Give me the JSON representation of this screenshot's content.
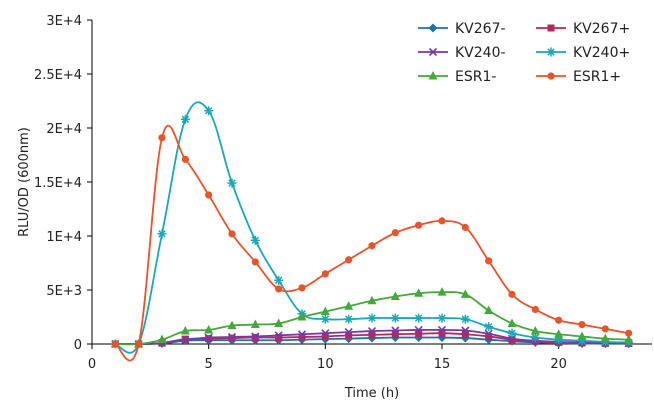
{
  "chart_data": {
    "type": "line",
    "xlabel": "Time (h)",
    "ylabel": "RLU/OD (600nm)",
    "xlim": [
      0,
      24
    ],
    "ylim": [
      0,
      30000
    ],
    "xticks": [
      0,
      5,
      10,
      15,
      20
    ],
    "xtick_labels": [
      "0",
      "5",
      "10",
      "15",
      "20"
    ],
    "yticks": [
      0,
      5000,
      10000,
      15000,
      20000,
      25000,
      30000
    ],
    "ytick_labels": [
      "0",
      "5E+3",
      "1E+4",
      "1.5E+4",
      "2E+4",
      "2.5E+4",
      "3E+4"
    ],
    "legend_position": "top-right",
    "x": [
      1,
      2,
      3,
      4,
      5,
      6,
      7,
      8,
      9,
      10,
      11,
      12,
      13,
      14,
      15,
      16,
      17,
      18,
      19,
      20,
      21,
      22,
      23
    ],
    "series": [
      {
        "name": "KV267-",
        "color": "#1f6fb5",
        "marker": "diamond",
        "values": [
          0,
          0,
          50,
          300,
          350,
          350,
          350,
          350,
          400,
          450,
          500,
          550,
          600,
          600,
          600,
          550,
          400,
          250,
          150,
          80,
          50,
          30,
          20
        ]
      },
      {
        "name": "KV267+",
        "color": "#b02a5b",
        "marker": "square",
        "values": [
          0,
          0,
          100,
          450,
          500,
          550,
          600,
          600,
          650,
          700,
          800,
          850,
          900,
          950,
          1000,
          900,
          700,
          400,
          250,
          150,
          100,
          60,
          50
        ]
      },
      {
        "name": "KV240-",
        "color": "#7a3aa0",
        "marker": "x",
        "values": [
          0,
          0,
          100,
          400,
          600,
          650,
          700,
          800,
          900,
          1000,
          1100,
          1200,
          1250,
          1300,
          1300,
          1250,
          950,
          500,
          300,
          200,
          150,
          100,
          80
        ]
      },
      {
        "name": "KV240+",
        "color": "#1aa8b8",
        "marker": "asterisk",
        "values": [
          0,
          0,
          10200,
          20800,
          21600,
          14900,
          9600,
          5900,
          2800,
          2300,
          2300,
          2400,
          2400,
          2400,
          2400,
          2300,
          1600,
          1000,
          600,
          400,
          300,
          200,
          150
        ]
      },
      {
        "name": "ESR1-",
        "color": "#44a83a",
        "marker": "triangle",
        "values": [
          0,
          0,
          400,
          1200,
          1300,
          1700,
          1800,
          1900,
          2500,
          3000,
          3500,
          4000,
          4400,
          4700,
          4800,
          4600,
          3100,
          1900,
          1200,
          900,
          700,
          500,
          400
        ]
      },
      {
        "name": "ESR1+",
        "color": "#e8542b",
        "marker": "circle",
        "values": [
          0,
          0,
          19100,
          17100,
          13800,
          10200,
          7600,
          5100,
          5200,
          6500,
          7800,
          9100,
          10300,
          11000,
          11400,
          10800,
          7700,
          4600,
          3200,
          2200,
          1800,
          1400,
          1000
        ]
      }
    ]
  }
}
